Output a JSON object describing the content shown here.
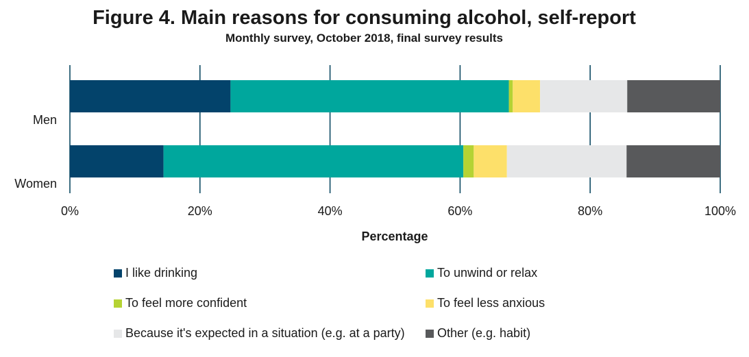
{
  "chart_data": {
    "type": "bar",
    "orientation": "horizontal",
    "stacked": true,
    "title": "Figure 4. Main reasons for consuming alcohol, self-report",
    "subtitle": "Monthly survey, October 2018, final survey results",
    "xlabel": "Percentage",
    "ylabel": "",
    "xlim": [
      0,
      100
    ],
    "x_ticks": [
      "0%",
      "20%",
      "40%",
      "60%",
      "80%",
      "100%"
    ],
    "categories": [
      "Men",
      "Women"
    ],
    "grid": "vertical",
    "legend_position": "bottom",
    "series": [
      {
        "name": "I like drinking",
        "color": "#03436b",
        "values": [
          24.7,
          14.4
        ]
      },
      {
        "name": "To unwind or relax",
        "color": "#00a79d",
        "values": [
          42.8,
          46.1
        ]
      },
      {
        "name": "To feel more confident",
        "color": "#b5d334",
        "values": [
          0.6,
          1.6
        ]
      },
      {
        "name": "To feel less anxious",
        "color": "#fde06a",
        "values": [
          4.2,
          5.1
        ]
      },
      {
        "name": "Because it's expected in a situation (e.g. at a party)",
        "color": "#e6e7e8",
        "values": [
          13.4,
          18.4
        ]
      },
      {
        "name": "Other (e.g. habit)",
        "color": "#58595b",
        "values": [
          14.3,
          14.4
        ]
      }
    ]
  },
  "colors": {
    "gridline": "#0d4a63",
    "text": "#1a1a1a"
  }
}
